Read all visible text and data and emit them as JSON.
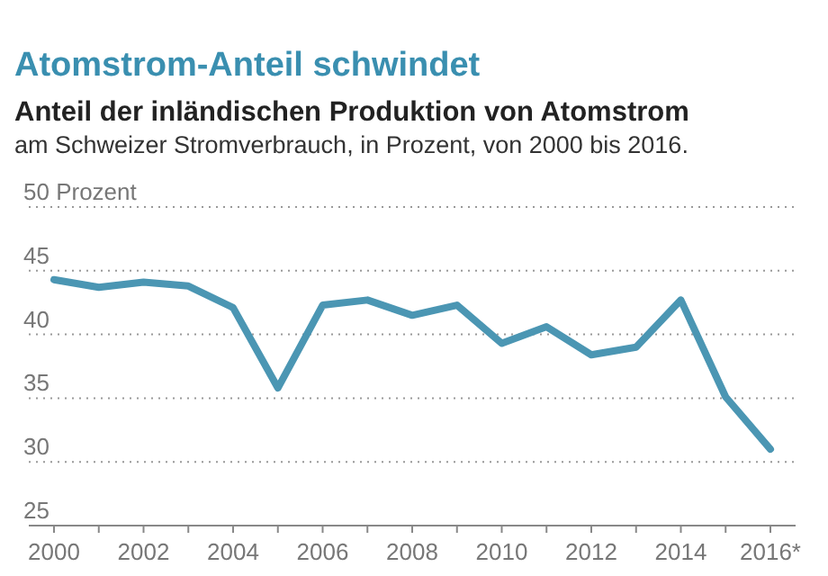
{
  "chart_data": {
    "type": "line",
    "title": "Atomstrom-Anteil schwindet",
    "subtitle": "Anteil der inländischen Produktion von Atomstrom",
    "annotations": [
      "am Schweizer Stromverbrauch, in Prozent, von 2000 bis 2016."
    ],
    "categories": [
      "2000",
      null,
      "2002",
      null,
      "2004",
      null,
      "2006",
      null,
      "2008",
      null,
      "2010",
      null,
      "2012",
      null,
      "2014",
      null,
      "2016*"
    ],
    "series": [
      {
        "color": "#4b96b3",
        "values": [
          44.3,
          43.7,
          44.1,
          43.8,
          42.1,
          35.8,
          42.3,
          42.7,
          41.5,
          42.3,
          39.3,
          40.6,
          38.4,
          39.0,
          42.7,
          35.1,
          31.0
        ]
      }
    ],
    "ylim": [
      25,
      50
    ],
    "yticks": [
      25,
      30,
      35,
      40,
      45,
      {
        "value": 50,
        "label": "50 Prozent"
      }
    ],
    "grid": "y",
    "line_style": "solid"
  }
}
